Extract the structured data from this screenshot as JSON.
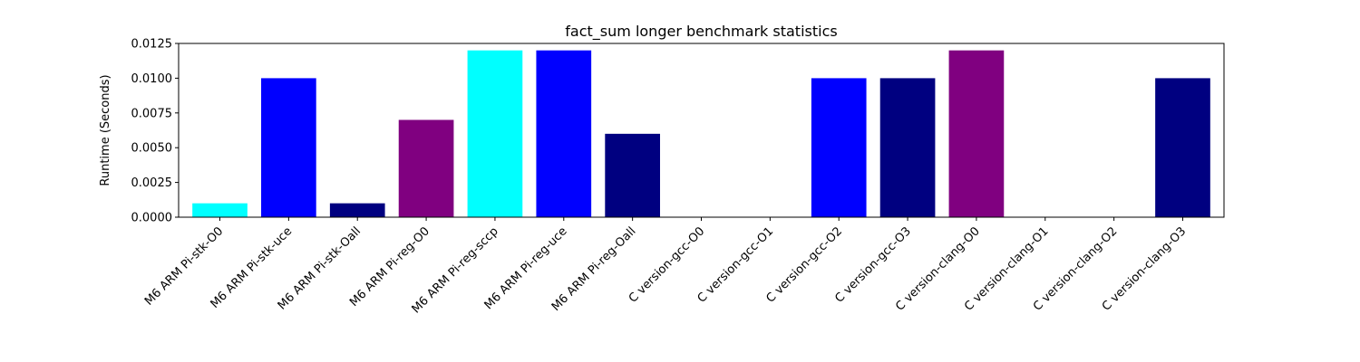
{
  "chart_data": {
    "type": "bar",
    "title": "fact_sum longer benchmark statistics",
    "xlabel": "",
    "ylabel": "Runtime (Seconds)",
    "ylim": [
      0,
      0.0125
    ],
    "yticks": [
      "0.0000",
      "0.0025",
      "0.0050",
      "0.0075",
      "0.0100",
      "0.0125"
    ],
    "ytick_values": [
      0,
      0.0025,
      0.005,
      0.0075,
      0.01,
      0.0125
    ],
    "grid": false,
    "categories": [
      "M6 ARM Pi-stk-O0",
      "M6 ARM Pi-stk-uce",
      "M6 ARM Pi-stk-Oall",
      "M6 ARM Pi-reg-O0",
      "M6 ARM Pi-reg-sccp",
      "M6 ARM Pi-reg-uce",
      "M6 ARM Pi-reg-Oall",
      "C version-gcc-O0",
      "C version-gcc-O1",
      "C version-gcc-O2",
      "C version-gcc-O3",
      "C version-clang-O0",
      "C version-clang-O1",
      "C version-clang-O2",
      "C version-clang-O3"
    ],
    "values": [
      0.001,
      0.01,
      0.001,
      0.007,
      0.012,
      0.012,
      0.006,
      0,
      0,
      0.01,
      0.01,
      0.012,
      0,
      0,
      0.01
    ],
    "colors": [
      "#00ffff",
      "#0000ff",
      "#000080",
      "#800080",
      "#00ffff",
      "#0000ff",
      "#000080",
      "#800080",
      "#00ffff",
      "#0000ff",
      "#000080",
      "#800080",
      "#00ffff",
      "#0000ff",
      "#000080"
    ]
  }
}
